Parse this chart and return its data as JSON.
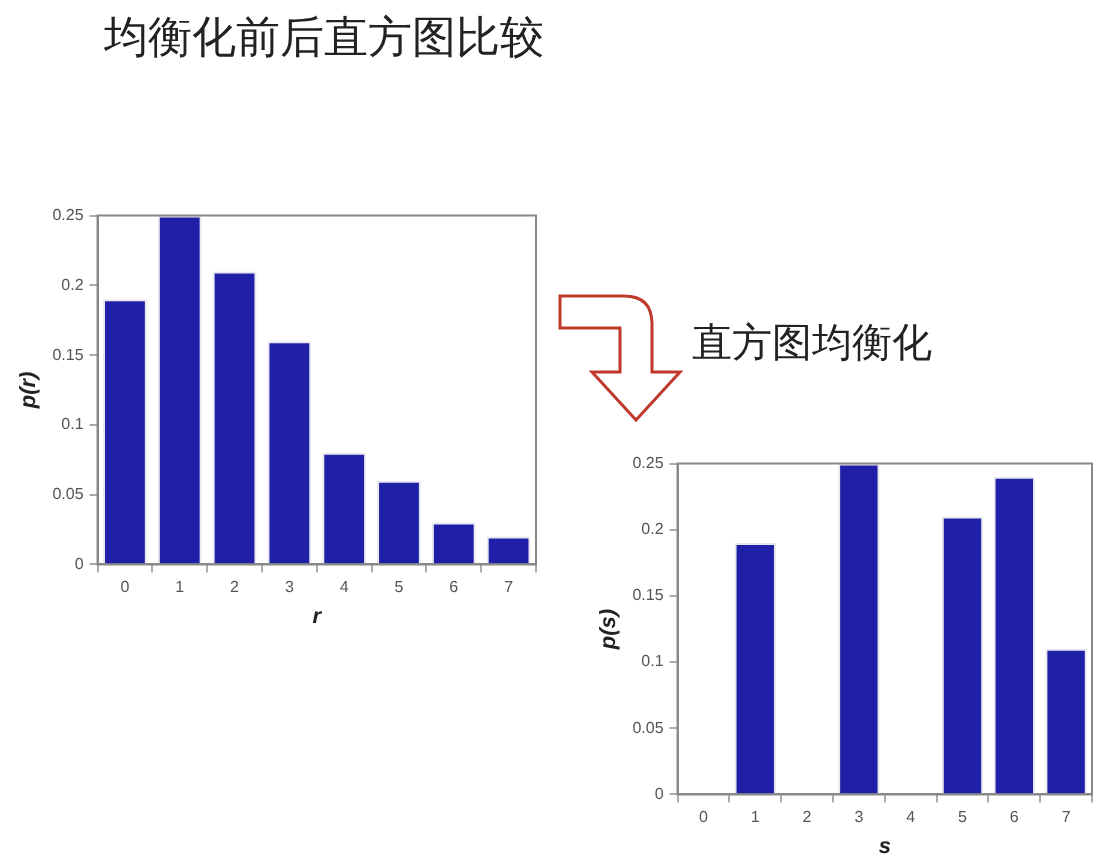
{
  "chart_data": [
    {
      "type": "bar",
      "title": "均衡化前后直方图比较",
      "xlabel": "r",
      "ylabel": "p(r)",
      "categories": [
        "0",
        "1",
        "2",
        "3",
        "4",
        "5",
        "6",
        "7"
      ],
      "values": [
        0.19,
        0.25,
        0.21,
        0.16,
        0.08,
        0.06,
        0.03,
        0.02
      ],
      "color": "#1f1fa8",
      "ylim": [
        0,
        0.25
      ],
      "yticks": [
        0,
        0.05,
        0.1,
        0.15,
        0.2,
        0.25
      ],
      "grid": false,
      "legend": false
    },
    {
      "type": "bar",
      "annotations": [
        "直方图均衡化"
      ],
      "xlabel": "s",
      "ylabel": "p(s)",
      "categories": [
        "0",
        "1",
        "2",
        "3",
        "4",
        "5",
        "6",
        "7"
      ],
      "values": [
        0,
        0.19,
        0,
        0.25,
        0,
        0.21,
        0.24,
        0.11
      ],
      "color": "#1f1fa8",
      "ylim": [
        0,
        0.25
      ],
      "yticks": [
        0,
        0.05,
        0.1,
        0.15,
        0.2,
        0.25
      ],
      "grid": false,
      "legend": false
    }
  ]
}
